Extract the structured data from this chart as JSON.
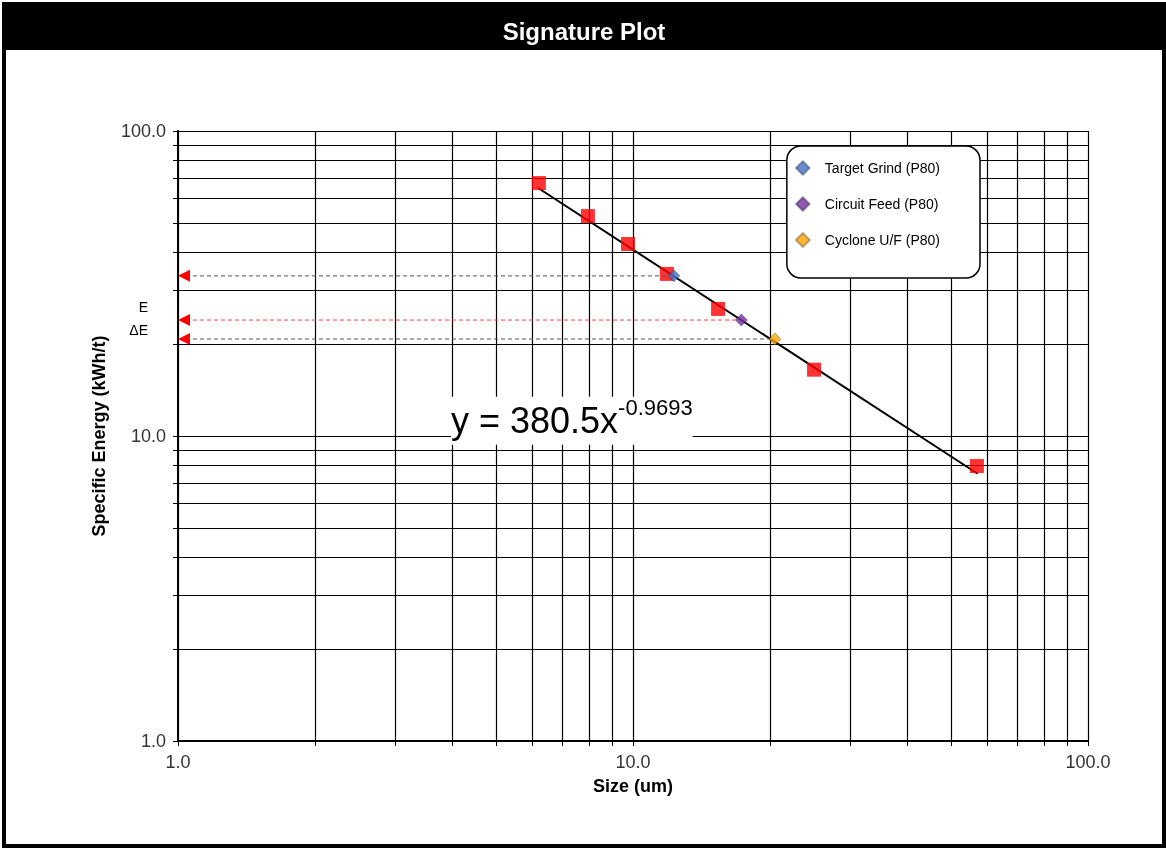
{
  "chart_data": {
    "type": "scatter",
    "title": "Signature Plot",
    "xlabel": "Size (um)",
    "ylabel": "Specific Energy (kWh/t)",
    "log": "xy",
    "grid": true,
    "legend": "top right",
    "xlim": [
      1,
      100
    ],
    "ylim": [
      1,
      100
    ],
    "xticks": [
      {
        "value": 1,
        "label": "1.0"
      },
      {
        "value": 2,
        "label": null
      },
      {
        "value": 3,
        "label": null
      },
      {
        "value": 4,
        "label": null
      },
      {
        "value": 5,
        "label": null
      },
      {
        "value": 6,
        "label": null
      },
      {
        "value": 7,
        "label": null
      },
      {
        "value": 8,
        "label": null
      },
      {
        "value": 9,
        "label": null
      },
      {
        "value": 10,
        "label": "10.0"
      },
      {
        "value": 20,
        "label": null
      },
      {
        "value": 30,
        "label": null
      },
      {
        "value": 40,
        "label": null
      },
      {
        "value": 50,
        "label": null
      },
      {
        "value": 60,
        "label": null
      },
      {
        "value": 70,
        "label": null
      },
      {
        "value": 80,
        "label": null
      },
      {
        "value": 90,
        "label": null
      },
      {
        "value": 100,
        "label": "100.0"
      }
    ],
    "yticks": [
      {
        "value": 1,
        "label": "1.0"
      },
      {
        "value": 2,
        "label": null
      },
      {
        "value": 3,
        "label": null
      },
      {
        "value": 4,
        "label": null
      },
      {
        "value": 5,
        "label": null
      },
      {
        "value": 6,
        "label": null
      },
      {
        "value": 7,
        "label": null
      },
      {
        "value": 8,
        "label": null
      },
      {
        "value": 9,
        "label": null
      },
      {
        "value": 10,
        "label": "10.0"
      },
      {
        "value": 20,
        "label": null
      },
      {
        "value": 30,
        "label": null
      },
      {
        "value": 40,
        "label": null
      },
      {
        "value": 50,
        "label": null
      },
      {
        "value": 60,
        "label": null
      },
      {
        "value": 70,
        "label": null
      },
      {
        "value": 80,
        "label": null
      },
      {
        "value": 90,
        "label": null
      },
      {
        "value": 100,
        "label": "100.0"
      }
    ],
    "series": [
      {
        "type": "line",
        "color": "#000000",
        "line_style": "solid",
        "marker": "none",
        "x": [
          6.2,
          57
        ],
        "values": [
          64.9,
          7.55
        ]
      },
      {
        "color": "#ff0000",
        "marker": "square",
        "x": [
          6.21,
          7.96,
          9.75,
          11.87,
          15.38,
          25.0,
          57.0
        ],
        "values": [
          67.5,
          52.6,
          42.6,
          34.0,
          26.1,
          16.5,
          7.97
        ]
      },
      {
        "name": "Target Grind (P80)",
        "color": "#4472c4",
        "marker": "diamond",
        "x": [
          12.3
        ],
        "values": [
          33.5
        ]
      },
      {
        "name": "Circuit Feed (P80)",
        "color": "#7030a0",
        "marker": "diamond",
        "x": [
          17.3
        ],
        "values": [
          24.0
        ]
      },
      {
        "name": "Cyclone U/F (P80)",
        "color": "#ffa500",
        "marker": "diamond",
        "x": [
          20.5
        ],
        "values": [
          20.8
        ]
      }
    ],
    "annotations": [
      "y = 380.5x$^{-0.9693}$",
      "E",
      "ΔE"
    ]
  }
}
